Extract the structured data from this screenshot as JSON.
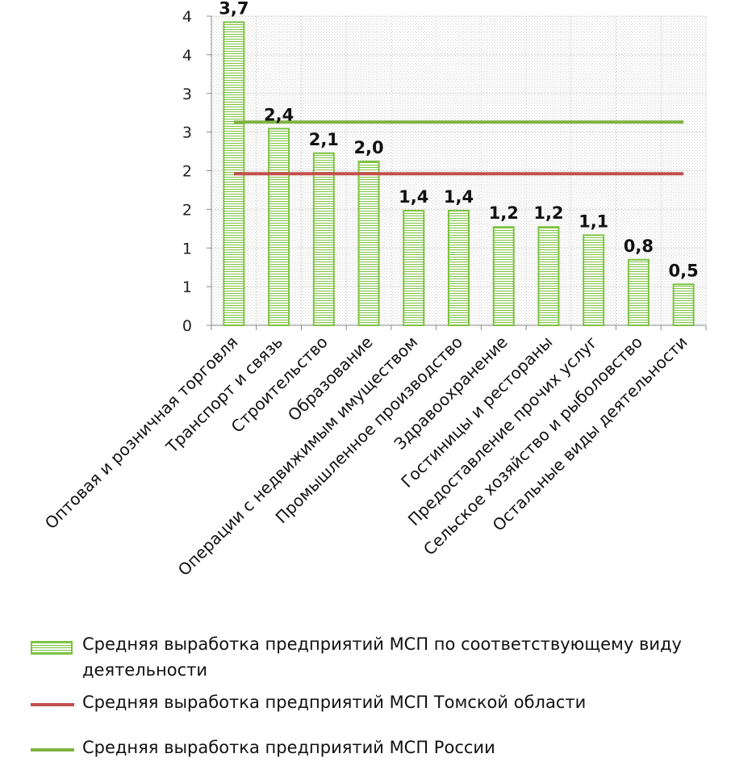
{
  "chart_data": {
    "type": "bar",
    "categories": [
      "Оптовая и розничная торговля",
      "Транспорт и связь",
      "Строительство",
      "Образование",
      "Операции с недвижимым имуществом",
      "Промышленное производство",
      "Здравоохранение",
      "Гостиницы и рестораны",
      "Предоставление прочих услуг",
      "Сельское хозяйство и рыболовство",
      "Остальные виды деятельности"
    ],
    "series": [
      {
        "name": "Средняя выработка предприятий МСП по соответствующему виду деятельности",
        "values": [
          3.7,
          2.4,
          2.1,
          2.0,
          1.4,
          1.4,
          1.2,
          1.2,
          1.1,
          0.8,
          0.5
        ],
        "value_labels": [
          "3,7",
          "2,4",
          "2,1",
          "2,0",
          "1,4",
          "1,4",
          "1,2",
          "1,2",
          "1,1",
          "0,8",
          "0,5"
        ],
        "color": "#7dc242"
      },
      {
        "name": "Средняя выработка предприятий МСП Томской области",
        "type": "hline",
        "value": 1.85,
        "color": "#c0504d"
      },
      {
        "name": "Средняя выработка предприятий МСП России",
        "type": "hline",
        "value": 2.48,
        "color": "#7fb241"
      }
    ],
    "y_tick_labels": [
      "0",
      "1",
      "1",
      "2",
      "2",
      "3",
      "3",
      "4",
      "4"
    ],
    "ylim": [
      0,
      4
    ],
    "grid": true,
    "legend_position": "bottom"
  }
}
